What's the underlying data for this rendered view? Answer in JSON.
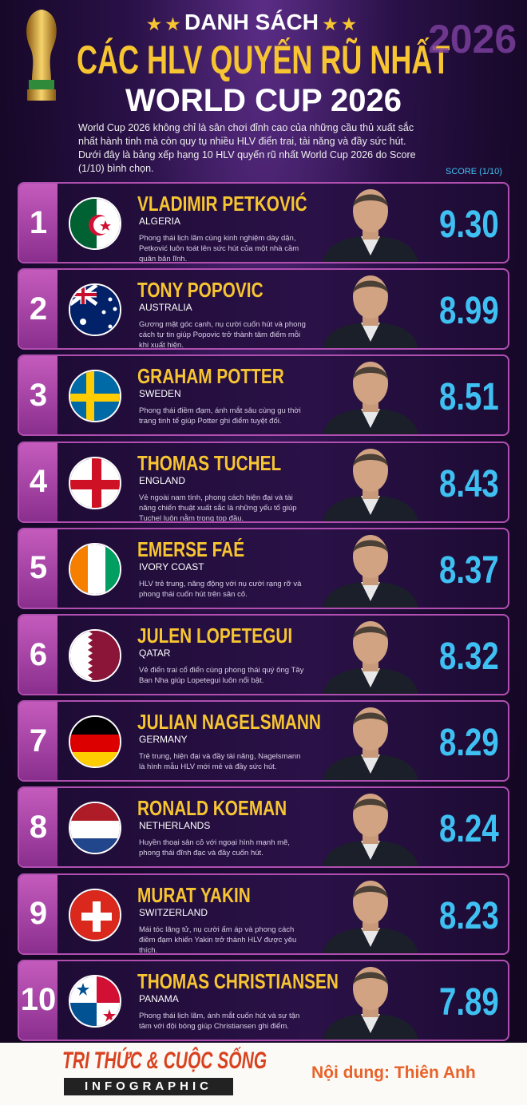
{
  "header": {
    "kicker": "DANH SÁCH",
    "title": "CÁC HLV QUYẾN RŨ NHẤT",
    "subtitle": "WORLD CUP 2026",
    "emblem": "2026"
  },
  "intro": "World Cup 2026 không chỉ là sân chơi đỉnh cao của những cầu thủ xuất sắc nhất hành tinh mà còn quy tụ nhiều HLV điển trai, tài năng và đầy sức hút. Dưới đây là bảng xếp hạng 10 HLV quyến rũ nhất World Cup 2026 do Score (1/10) bình chọn.",
  "score_label": "SCORE (1/10)",
  "rows": [
    {
      "rank": "1",
      "name": "VLADIMIR PETKOVIĆ",
      "country": "ALGERIA",
      "description": "Phong thái lịch lãm cùng kinh nghiệm dày dặn, Petković luôn toát lên sức hút của một nhà cầm quân bản lĩnh.",
      "score": "9.30"
    },
    {
      "rank": "2",
      "name": "TONY POPOVIC",
      "country": "AUSTRALIA",
      "description": "Gương mặt góc cạnh, nụ cười cuốn hút và phong cách tự tin giúp Popovic trở thành tâm điểm mỗi khi xuất hiện.",
      "score": "8.99"
    },
    {
      "rank": "3",
      "name": "GRAHAM POTTER",
      "country": "SWEDEN",
      "description": "Phong thái điềm đạm, ánh mắt sâu cùng gu thời trang tinh tế giúp Potter ghi điểm tuyệt đối.",
      "score": "8.51"
    },
    {
      "rank": "4",
      "name": "THOMAS TUCHEL",
      "country": "ENGLAND",
      "description": "Vẻ ngoài nam tính, phong cách hiện đại và tài năng chiến thuật xuất sắc là những yếu tố giúp Tuchel luôn nằm trong top đầu.",
      "score": "8.43"
    },
    {
      "rank": "5",
      "name": "EMERSE FAÉ",
      "country": "IVORY COAST",
      "description": "HLV trẻ trung, năng động với nụ cười rạng rỡ và phong thái cuốn hút trên sân cỏ.",
      "score": "8.37"
    },
    {
      "rank": "6",
      "name": "JULEN LOPETEGUI",
      "country": "QATAR",
      "description": "Vẻ điển trai cổ điển cùng phong thái quý ông Tây Ban Nha giúp Lopetegui luôn nổi bật.",
      "score": "8.32"
    },
    {
      "rank": "7",
      "name": "JULIAN NAGELSMANN",
      "country": "GERMANY",
      "description": "Trẻ trung, hiện đại và đầy tài năng, Nagelsmann là hình mẫu HLV mới mẻ và đầy sức hút.",
      "score": "8.29"
    },
    {
      "rank": "8",
      "name": "RONALD KOEMAN",
      "country": "NETHERLANDS",
      "description": "Huyền thoại sân cỏ với ngoại hình mạnh mẽ, phong thái đĩnh đạc và đầy cuốn hút.",
      "score": "8.24"
    },
    {
      "rank": "9",
      "name": "MURAT YAKIN",
      "country": "SWITZERLAND",
      "description": "Mái tóc lãng tử, nụ cười ấm áp và phong cách điềm đạm khiến Yakin trở thành HLV được yêu thích.",
      "score": "8.23"
    },
    {
      "rank": "10",
      "name": "THOMAS CHRISTIANSEN",
      "country": "PANAMA",
      "description": "Phong thái lịch lãm, ánh mắt cuốn hút và sự tận tâm với đội bóng giúp Christiansen ghi điểm.",
      "score": "7.89"
    }
  ],
  "footer": {
    "brand": "TRI THỨC & CUỘC SỐNG",
    "brand_sub": "INFOGRAPHIC",
    "credit": "Nội dung: Thiên Anh"
  }
}
